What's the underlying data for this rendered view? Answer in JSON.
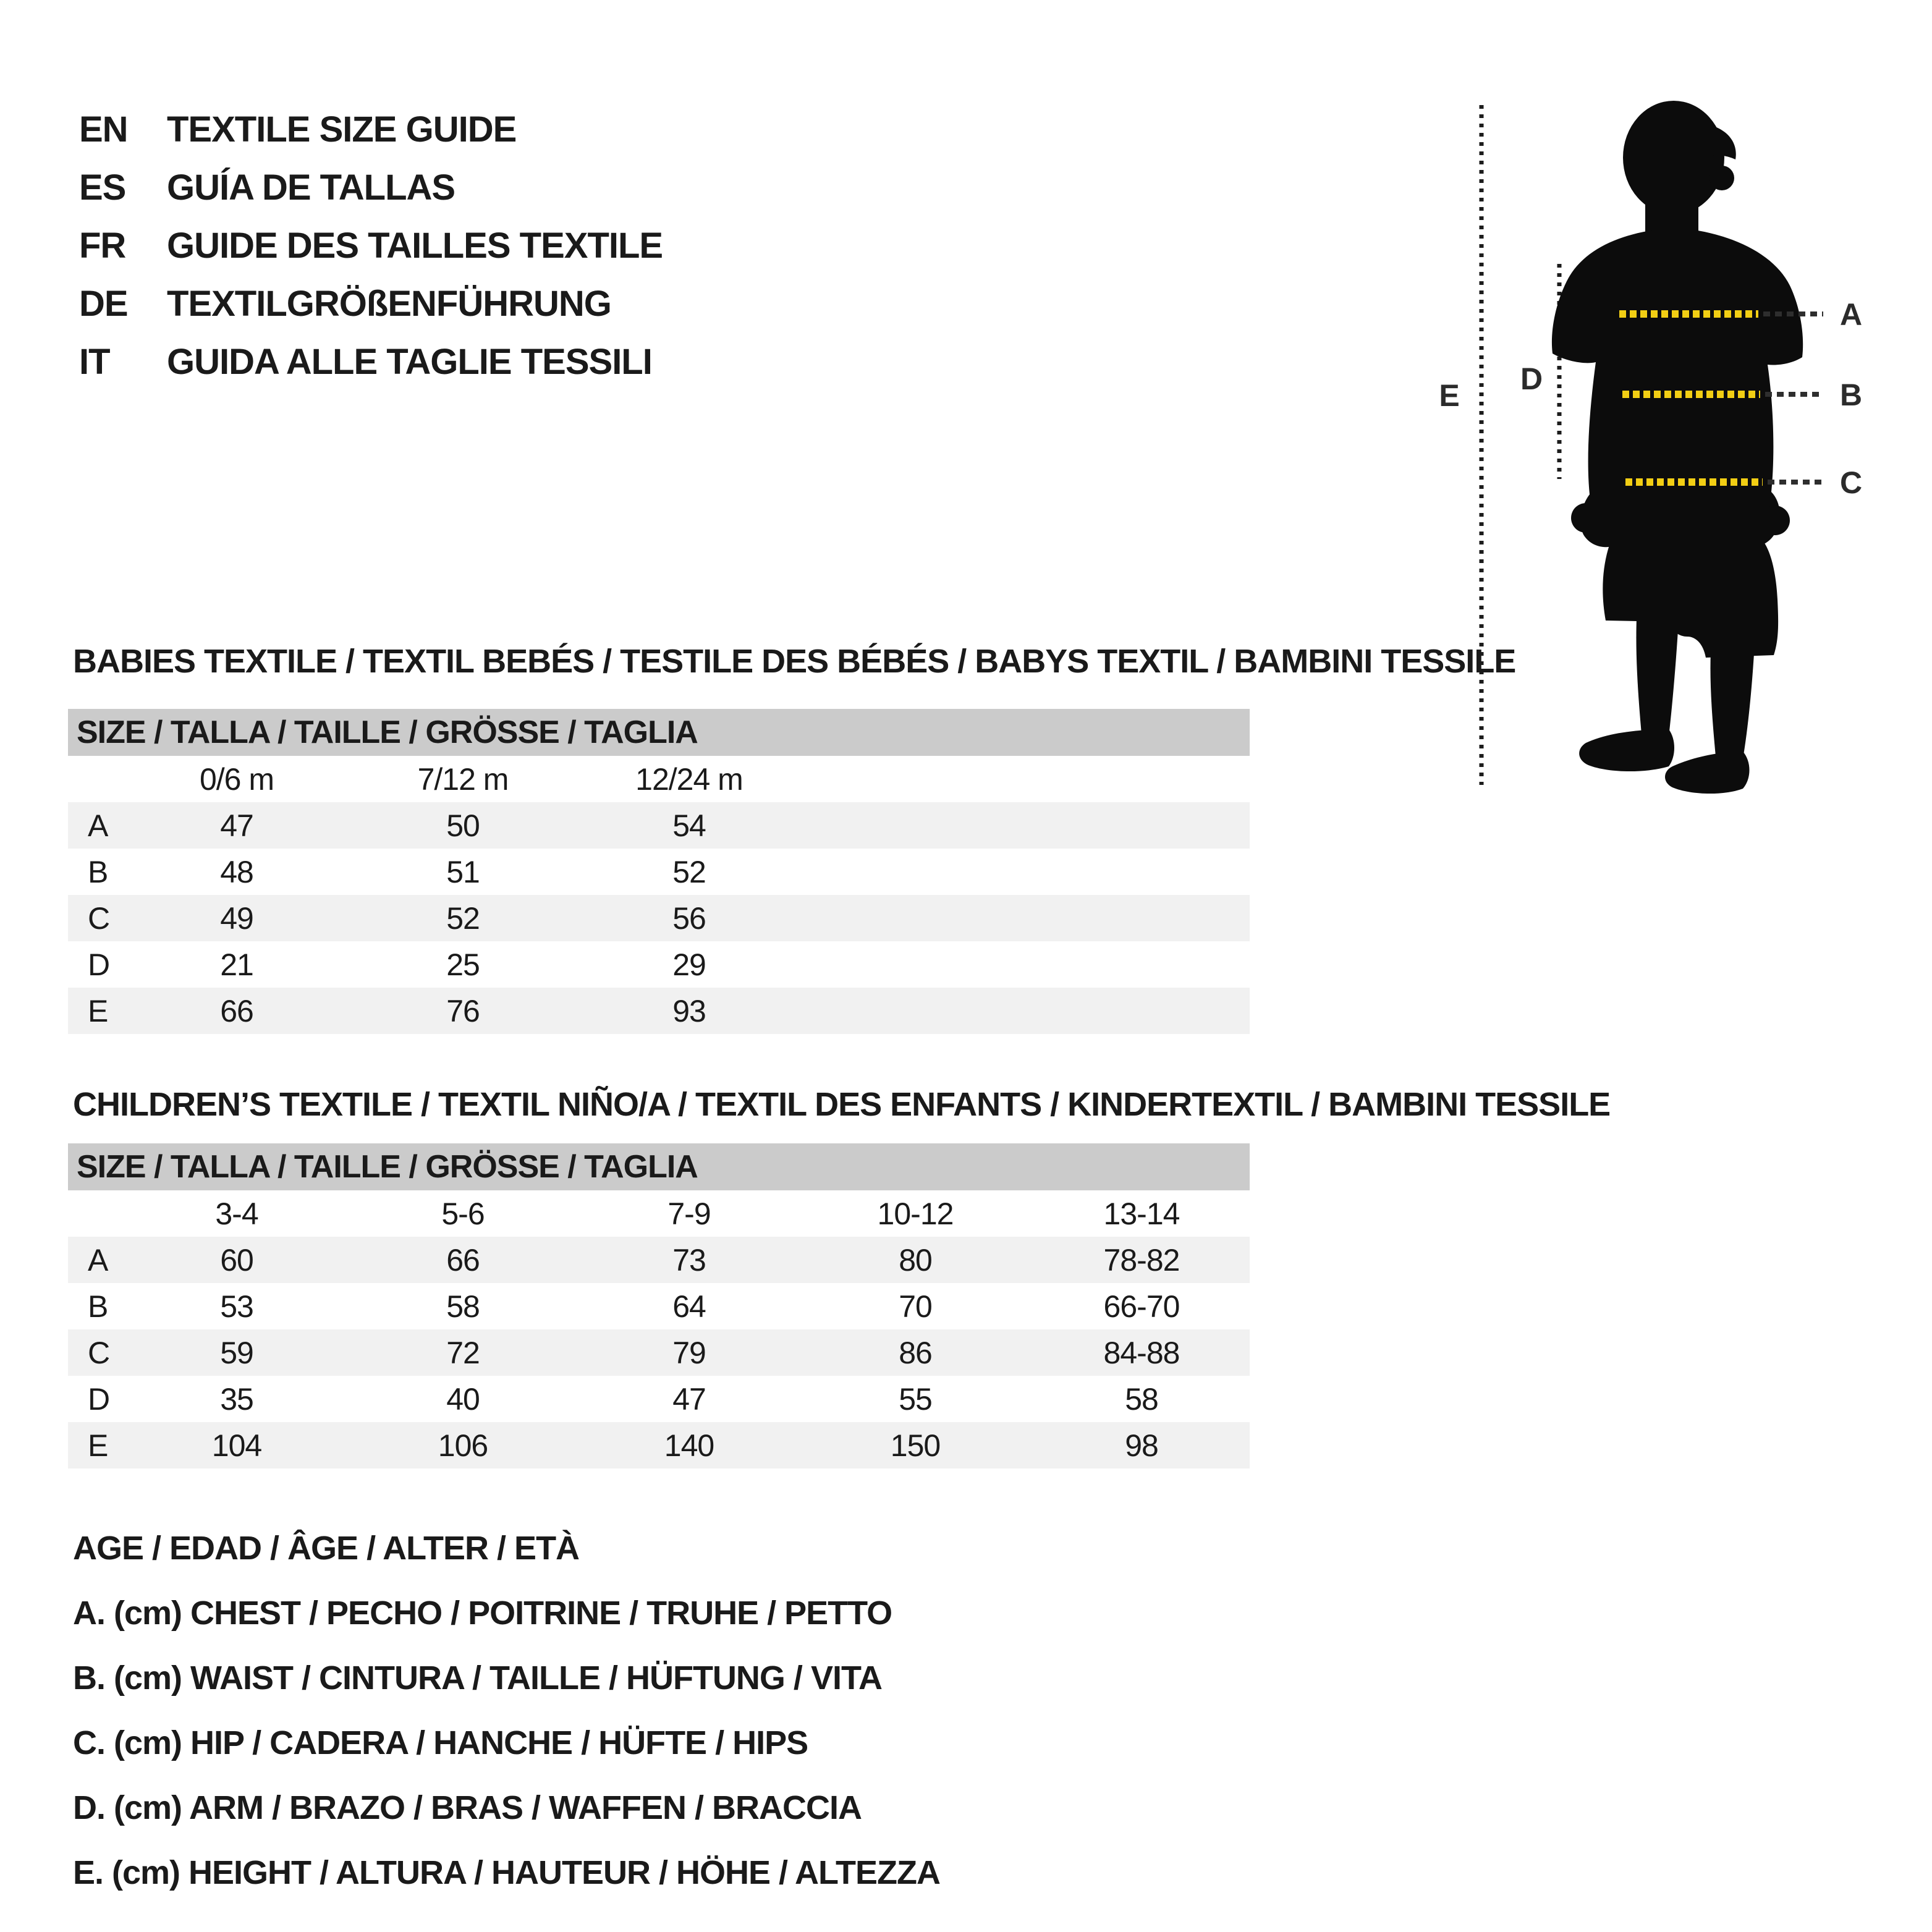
{
  "language_guide": {
    "items": [
      {
        "code": "EN",
        "label": "TEXTILE SIZE GUIDE"
      },
      {
        "code": "ES",
        "label": "GUÍA DE TALLAS"
      },
      {
        "code": "FR",
        "label": "GUIDE DES TAILLES TEXTILE"
      },
      {
        "code": "DE",
        "label": "TEXTILGRÖßENFÜHRUNG"
      },
      {
        "code": "IT",
        "label": "GUIDA ALLE TAGLIE TESSILI"
      }
    ]
  },
  "diagram": {
    "labels": {
      "a": "A",
      "b": "B",
      "c": "C",
      "d": "D",
      "e": "E"
    },
    "colors": {
      "silhouette": "#0c0c0c",
      "tape_yellow": "#F2CE14",
      "tape_dark": "#2e2e2e",
      "guide_dark": "#1c1c1c"
    }
  },
  "babies": {
    "title": "BABIES TEXTILE / TEXTIL BEBÉS / TESTILE DES BÉBÉS / BABYS TEXTIL / BAMBINI TESSILE",
    "table": {
      "header": "SIZE / TALLA / TAILLE / GRÖSSE / TAGLIA",
      "columns": [
        "0/6 m",
        "7/12 m",
        "12/24 m"
      ],
      "rows": [
        {
          "label": "A",
          "values": [
            "47",
            "50",
            "54"
          ]
        },
        {
          "label": "B",
          "values": [
            "48",
            "51",
            "52"
          ]
        },
        {
          "label": "C",
          "values": [
            "49",
            "52",
            "56"
          ]
        },
        {
          "label": "D",
          "values": [
            "21",
            "25",
            "29"
          ]
        },
        {
          "label": "E",
          "values": [
            "66",
            "76",
            "93"
          ]
        }
      ]
    }
  },
  "children": {
    "title": "CHILDREN’S TEXTILE / TEXTIL NIÑO/A / TEXTIL DES ENFANTS / KINDERTEXTIL / BAMBINI TESSILE",
    "table": {
      "header": "SIZE / TALLA / TAILLE / GRÖSSE / TAGLIA",
      "columns": [
        "3-4",
        "5-6",
        "7-9",
        "10-12",
        "13-14"
      ],
      "rows": [
        {
          "label": "A",
          "values": [
            "60",
            "66",
            "73",
            "80",
            "78-82"
          ]
        },
        {
          "label": "B",
          "values": [
            "53",
            "58",
            "64",
            "70",
            "66-70"
          ]
        },
        {
          "label": "C",
          "values": [
            "59",
            "72",
            "79",
            "86",
            "84-88"
          ]
        },
        {
          "label": "D",
          "values": [
            "35",
            "40",
            "47",
            "55",
            "58"
          ]
        },
        {
          "label": "E",
          "values": [
            "104",
            "106",
            "140",
            "150",
            "98"
          ]
        }
      ]
    }
  },
  "legend": {
    "lines": [
      "AGE / EDAD / ÂGE / ALTER / ETÀ",
      "A. (cm) CHEST / PECHO / POITRINE / TRUHE / PETTO",
      "B. (cm) WAIST / CINTURA / TAILLE / HÜFTUNG / VITA",
      "C. (cm) HIP / CADERA / HANCHE / HÜFTE / HIPS",
      "D. (cm) ARM / BRAZO / BRAS / WAFFEN / BRACCIA",
      "E. (cm) HEIGHT / ALTURA / HAUTEUR / HÖHE / ALTEZZA"
    ]
  }
}
